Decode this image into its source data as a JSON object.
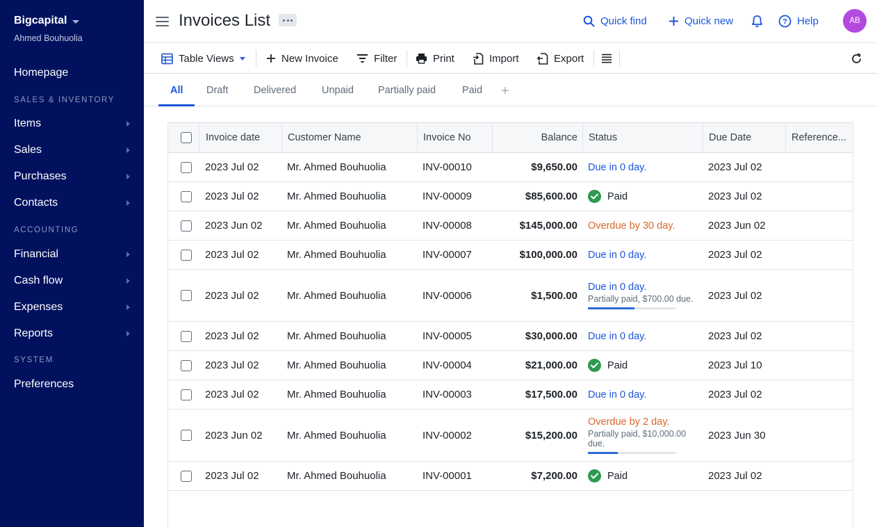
{
  "app": {
    "name": "Bigcapital",
    "user": "Ahmed Bouhuolia"
  },
  "sidebar": {
    "items": [
      {
        "label": "Homepage"
      },
      {
        "label": "Items"
      },
      {
        "label": "Sales"
      },
      {
        "label": "Purchases"
      },
      {
        "label": "Contacts"
      },
      {
        "label": "Financial"
      },
      {
        "label": "Cash flow"
      },
      {
        "label": "Expenses"
      },
      {
        "label": "Reports"
      },
      {
        "label": "Preferences"
      }
    ],
    "sections": [
      "SALES & INVENTORY",
      "ACCOUNTING",
      "SYSTEM"
    ]
  },
  "header": {
    "title": "Invoices List",
    "quick_find": "Quick find",
    "quick_new": "Quick new",
    "help": "Help",
    "avatar_initials": "AB"
  },
  "toolbar": {
    "table_views": "Table Views",
    "new_invoice": "New Invoice",
    "filter": "Filter",
    "print": "Print",
    "import": "Import",
    "export": "Export"
  },
  "tabs": [
    "All",
    "Draft",
    "Delivered",
    "Unpaid",
    "Partially paid",
    "Paid"
  ],
  "table": {
    "columns": [
      "Invoice date",
      "Customer Name",
      "Invoice No",
      "Balance",
      "Status",
      "Due Date",
      "Reference..."
    ],
    "rows": [
      {
        "date": "2023 Jul 02",
        "customer": "Mr. Ahmed Bouhuolia",
        "number": "INV-00010",
        "balance": "$9,650.00",
        "status_type": "due",
        "status": "Due in 0 day.",
        "due_date": "2023 Jul 02"
      },
      {
        "date": "2023 Jul 02",
        "customer": "Mr. Ahmed Bouhuolia",
        "number": "INV-00009",
        "balance": "$85,600.00",
        "status_type": "paid",
        "status": "Paid",
        "due_date": "2023 Jul 02"
      },
      {
        "date": "2023 Jun 02",
        "customer": "Mr. Ahmed Bouhuolia",
        "number": "INV-00008",
        "balance": "$145,000.00",
        "status_type": "overdue",
        "status": "Overdue by 30 day.",
        "due_date": "2023 Jun 02"
      },
      {
        "date": "2023 Jul 02",
        "customer": "Mr. Ahmed Bouhuolia",
        "number": "INV-00007",
        "balance": "$100,000.00",
        "status_type": "due",
        "status": "Due in 0 day.",
        "due_date": "2023 Jul 02"
      },
      {
        "date": "2023 Jul 02",
        "customer": "Mr. Ahmed Bouhuolia",
        "number": "INV-00006",
        "balance": "$1,500.00",
        "status_type": "due",
        "status": "Due in 0 day.",
        "partial": "Partially paid, $700.00 due.",
        "progress": 0.53,
        "due_date": "2023 Jul 02"
      },
      {
        "date": "2023 Jul 02",
        "customer": "Mr. Ahmed Bouhuolia",
        "number": "INV-00005",
        "balance": "$30,000.00",
        "status_type": "due",
        "status": "Due in 0 day.",
        "due_date": "2023 Jul 02"
      },
      {
        "date": "2023 Jul 02",
        "customer": "Mr. Ahmed Bouhuolia",
        "number": "INV-00004",
        "balance": "$21,000.00",
        "status_type": "paid",
        "status": "Paid",
        "due_date": "2023 Jul 10"
      },
      {
        "date": "2023 Jul 02",
        "customer": "Mr. Ahmed Bouhuolia",
        "number": "INV-00003",
        "balance": "$17,500.00",
        "status_type": "due",
        "status": "Due in 0 day.",
        "due_date": "2023 Jul 02"
      },
      {
        "date": "2023 Jun 02",
        "customer": "Mr. Ahmed Bouhuolia",
        "number": "INV-00002",
        "balance": "$15,200.00",
        "status_type": "overdue",
        "status": "Overdue by 2 day.",
        "partial": "Partially paid, $10,000.00 due.",
        "progress": 0.34,
        "due_date": "2023 Jun 30"
      },
      {
        "date": "2023 Jul 02",
        "customer": "Mr. Ahmed Bouhuolia",
        "number": "INV-00001",
        "balance": "$7,200.00",
        "status_type": "paid",
        "status": "Paid",
        "due_date": "2023 Jul 02"
      }
    ]
  },
  "colors": {
    "sidebar_bg": "#01115e",
    "accent": "#1a56db",
    "overdue": "#d9662a",
    "paid": "#2e9a4e",
    "avatar": "#b24ae0"
  }
}
